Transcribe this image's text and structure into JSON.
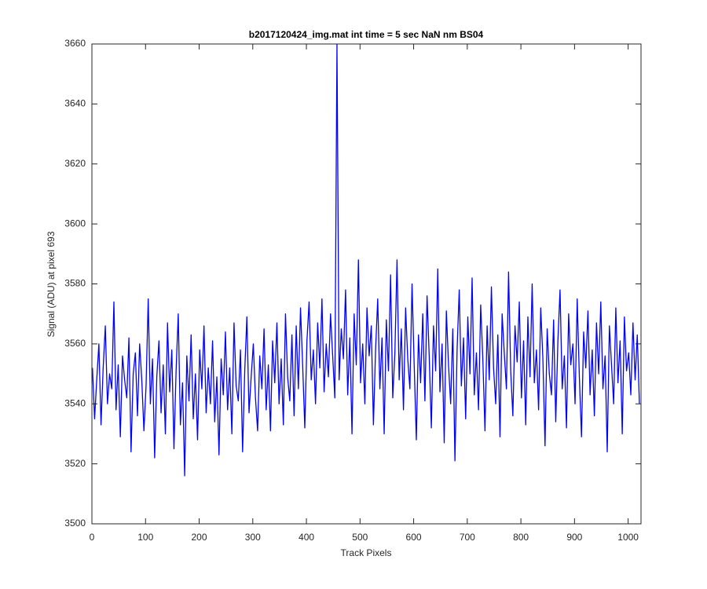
{
  "chart_data": {
    "type": "line",
    "title": "b2017120424_img.mat int time = 5 sec  NaN nm BS04",
    "xlabel": "Track Pixels",
    "ylabel": "Signal (ADU) at pixel 693",
    "xlim": [
      0,
      1024
    ],
    "ylim": [
      3500,
      3660
    ],
    "xticks": [
      0,
      100,
      200,
      300,
      400,
      500,
      600,
      700,
      800,
      900,
      1000
    ],
    "yticks": [
      3500,
      3520,
      3540,
      3560,
      3580,
      3600,
      3620,
      3640,
      3660
    ],
    "grid": false,
    "x": [
      1,
      5,
      9,
      13,
      17,
      21,
      25,
      29,
      33,
      37,
      41,
      45,
      49,
      53,
      57,
      61,
      65,
      69,
      73,
      77,
      81,
      85,
      89,
      93,
      97,
      101,
      105,
      109,
      113,
      117,
      121,
      125,
      129,
      133,
      137,
      141,
      145,
      149,
      153,
      157,
      161,
      165,
      169,
      173,
      177,
      181,
      185,
      189,
      193,
      197,
      201,
      205,
      209,
      213,
      217,
      221,
      225,
      229,
      233,
      237,
      241,
      245,
      249,
      253,
      257,
      261,
      265,
      269,
      273,
      277,
      281,
      285,
      289,
      293,
      297,
      301,
      305,
      309,
      313,
      317,
      321,
      325,
      329,
      333,
      337,
      341,
      345,
      349,
      353,
      357,
      361,
      365,
      369,
      373,
      377,
      381,
      385,
      389,
      393,
      397,
      401,
      405,
      409,
      413,
      417,
      421,
      425,
      429,
      433,
      437,
      441,
      445,
      449,
      453,
      457,
      461,
      465,
      469,
      473,
      477,
      481,
      485,
      489,
      493,
      497,
      501,
      505,
      509,
      513,
      517,
      521,
      525,
      529,
      533,
      537,
      541,
      545,
      549,
      553,
      557,
      561,
      565,
      569,
      573,
      577,
      581,
      585,
      589,
      593,
      597,
      601,
      605,
      609,
      613,
      617,
      621,
      625,
      629,
      633,
      637,
      641,
      645,
      649,
      653,
      657,
      661,
      665,
      669,
      673,
      677,
      681,
      685,
      689,
      693,
      697,
      701,
      705,
      709,
      713,
      717,
      721,
      725,
      729,
      733,
      737,
      741,
      745,
      749,
      753,
      757,
      761,
      765,
      769,
      773,
      777,
      781,
      785,
      789,
      793,
      797,
      801,
      805,
      809,
      813,
      817,
      821,
      825,
      829,
      833,
      837,
      841,
      845,
      849,
      853,
      857,
      861,
      865,
      869,
      873,
      877,
      881,
      885,
      889,
      893,
      897,
      901,
      905,
      909,
      913,
      917,
      921,
      925,
      929,
      933,
      937,
      941,
      945,
      949,
      953,
      957,
      961,
      965,
      969,
      973,
      977,
      981,
      985,
      989,
      993,
      997,
      1001,
      1005,
      1009,
      1013,
      1017,
      1021
    ],
    "series": [
      {
        "name": "signal",
        "color": "#0000ff",
        "values": [
          3552,
          3535,
          3548,
          3560,
          3533,
          3552,
          3566,
          3540,
          3550,
          3545,
          3574,
          3538,
          3553,
          3529,
          3556,
          3548,
          3542,
          3562,
          3524,
          3550,
          3557,
          3536,
          3560,
          3548,
          3531,
          3546,
          3575,
          3540,
          3555,
          3522,
          3549,
          3561,
          3537,
          3553,
          3530,
          3567,
          3544,
          3558,
          3525,
          3551,
          3570,
          3533,
          3547,
          3516,
          3556,
          3541,
          3563,
          3535,
          3550,
          3528,
          3558,
          3545,
          3566,
          3537,
          3552,
          3540,
          3561,
          3534,
          3549,
          3523,
          3555,
          3543,
          3564,
          3538,
          3552,
          3530,
          3567,
          3546,
          3541,
          3558,
          3524,
          3551,
          3569,
          3537,
          3549,
          3560,
          3542,
          3531,
          3556,
          3545,
          3565,
          3538,
          3553,
          3531,
          3561,
          3547,
          3567,
          3540,
          3555,
          3533,
          3570,
          3549,
          3541,
          3563,
          3536,
          3566,
          3545,
          3572,
          3553,
          3532,
          3561,
          3574,
          3548,
          3558,
          3540,
          3567,
          3552,
          3575,
          3544,
          3560,
          3549,
          3570,
          3556,
          3542,
          3660,
          3548,
          3565,
          3555,
          3578,
          3543,
          3562,
          3530,
          3570,
          3553,
          3588,
          3547,
          3560,
          3540,
          3572,
          3556,
          3566,
          3533,
          3558,
          3575,
          3545,
          3562,
          3530,
          3568,
          3551,
          3583,
          3542,
          3557,
          3588,
          3548,
          3565,
          3538,
          3572,
          3555,
          3545,
          3580,
          3553,
          3528,
          3563,
          3547,
          3570,
          3541,
          3576,
          3556,
          3532,
          3566,
          3551,
          3585,
          3544,
          3560,
          3527,
          3571,
          3553,
          3540,
          3565,
          3521,
          3558,
          3578,
          3546,
          3562,
          3535,
          3569,
          3550,
          3582,
          3543,
          3557,
          3538,
          3573,
          3555,
          3531,
          3566,
          3548,
          3579,
          3552,
          3540,
          3563,
          3529,
          3570,
          3557,
          3545,
          3584,
          3551,
          3536,
          3566,
          3554,
          3574,
          3542,
          3561,
          3533,
          3569,
          3549,
          3580,
          3547,
          3558,
          3538,
          3572,
          3555,
          3526,
          3565,
          3550,
          3543,
          3568,
          3534,
          3561,
          3578,
          3545,
          3556,
          3532,
          3570,
          3553,
          3560,
          3540,
          3575,
          3549,
          3529,
          3564,
          3552,
          3571,
          3543,
          3558,
          3536,
          3567,
          3550,
          3574,
          3545,
          3556,
          3524,
          3566,
          3553,
          3540,
          3572,
          3547,
          3561,
          3530,
          3569,
          3551,
          3557,
          3543,
          3567,
          3548,
          3563,
          3540
        ]
      }
    ]
  }
}
